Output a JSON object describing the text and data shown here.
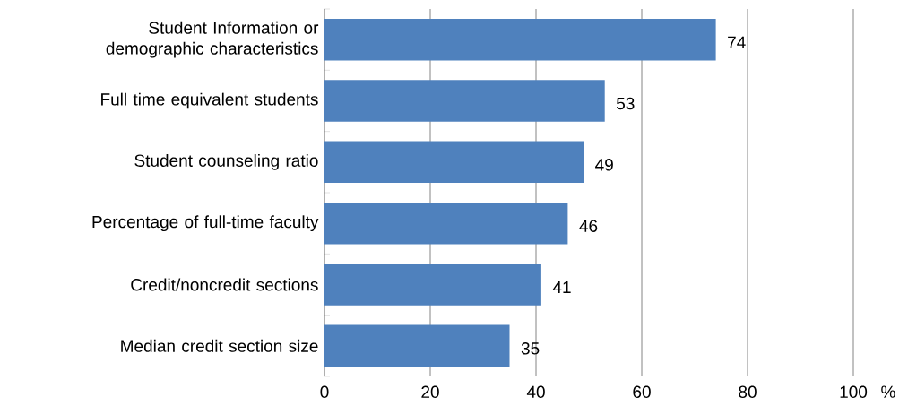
{
  "chart_data": {
    "type": "bar",
    "orientation": "horizontal",
    "xlabel": "%",
    "categories": [
      "Student Information or demographic characteristics",
      "Full time equivalent students",
      "Student counseling ratio",
      "Percentage of full-time faculty",
      "Credit/noncredit sections",
      "Median credit section size"
    ],
    "values": [
      74,
      53,
      49,
      46,
      41,
      35
    ],
    "color": "#4f81bd",
    "xlim": [
      0,
      100
    ],
    "xticks": [
      0,
      20,
      40,
      60,
      80,
      100
    ],
    "grid": "x",
    "data_labels": true
  }
}
